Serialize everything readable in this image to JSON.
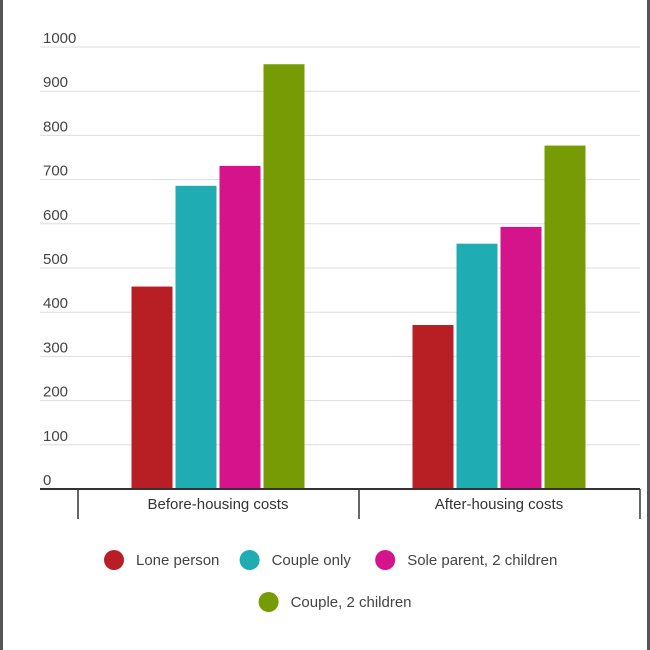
{
  "chart_data": {
    "type": "bar",
    "title": "",
    "xlabel": "",
    "ylabel": "",
    "ylim": [
      0,
      1000
    ],
    "yticks": [
      0,
      100,
      200,
      300,
      400,
      500,
      600,
      700,
      800,
      900,
      1000
    ],
    "grid": true,
    "legend_position": "bottom",
    "categories": [
      "Before-housing costs",
      "After-housing costs"
    ],
    "series": [
      {
        "name": "Lone person",
        "color": "#b71f24",
        "values": [
          458,
          371
        ]
      },
      {
        "name": "Couple only",
        "color": "#1fadb3",
        "values": [
          686,
          555
        ]
      },
      {
        "name": "Sole parent, 2 children",
        "color": "#d5138b",
        "values": [
          731,
          593
        ]
      },
      {
        "name": "Couple, 2 children",
        "color": "#779b04",
        "values": [
          961,
          777
        ]
      }
    ]
  }
}
